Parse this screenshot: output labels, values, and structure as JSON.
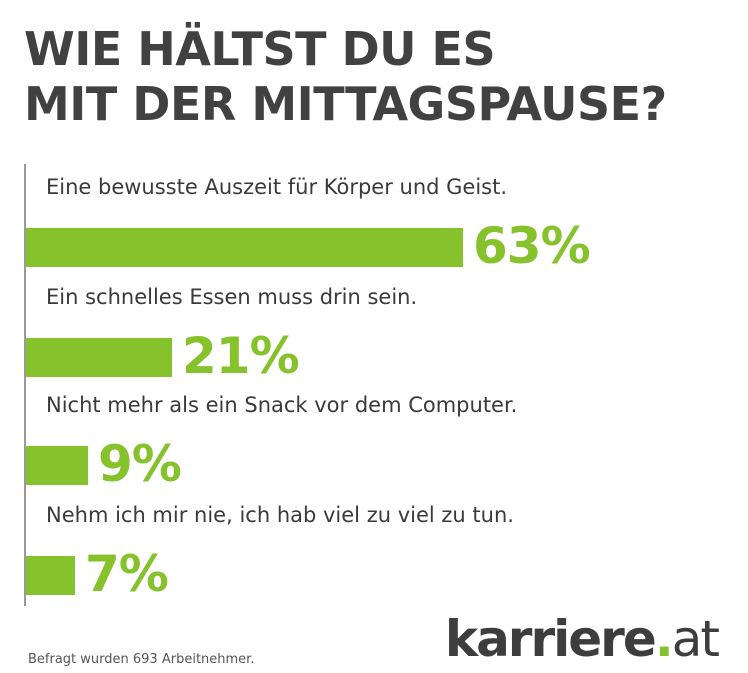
{
  "title": {
    "line1": "WIE HÄLTST DU ES",
    "line2": "MIT DER MITTAGSPAUSE?"
  },
  "chart_data": {
    "type": "bar",
    "orientation": "horizontal",
    "title": "WIE HÄLTST DU ES MIT DER MITTAGSPAUSE?",
    "categories": [
      "Eine bewusste Auszeit für Körper und Geist.",
      "Ein schnelles Essen muss drin sein.",
      "Nicht mehr als ein Snack vor dem Computer.",
      "Nehm ich mir nie, ich hab viel zu viel zu tun."
    ],
    "values": [
      63,
      21,
      9,
      7
    ],
    "value_labels": [
      "63%",
      "21%",
      "9%",
      "7%"
    ],
    "unit": "%",
    "xlim": [
      0,
      100
    ],
    "color": "#86c22b"
  },
  "footnote": "Befragt wurden 693 Arbeitnehmer.",
  "logo": {
    "word": "karriere",
    "dot": ".",
    "suffix": "at"
  }
}
